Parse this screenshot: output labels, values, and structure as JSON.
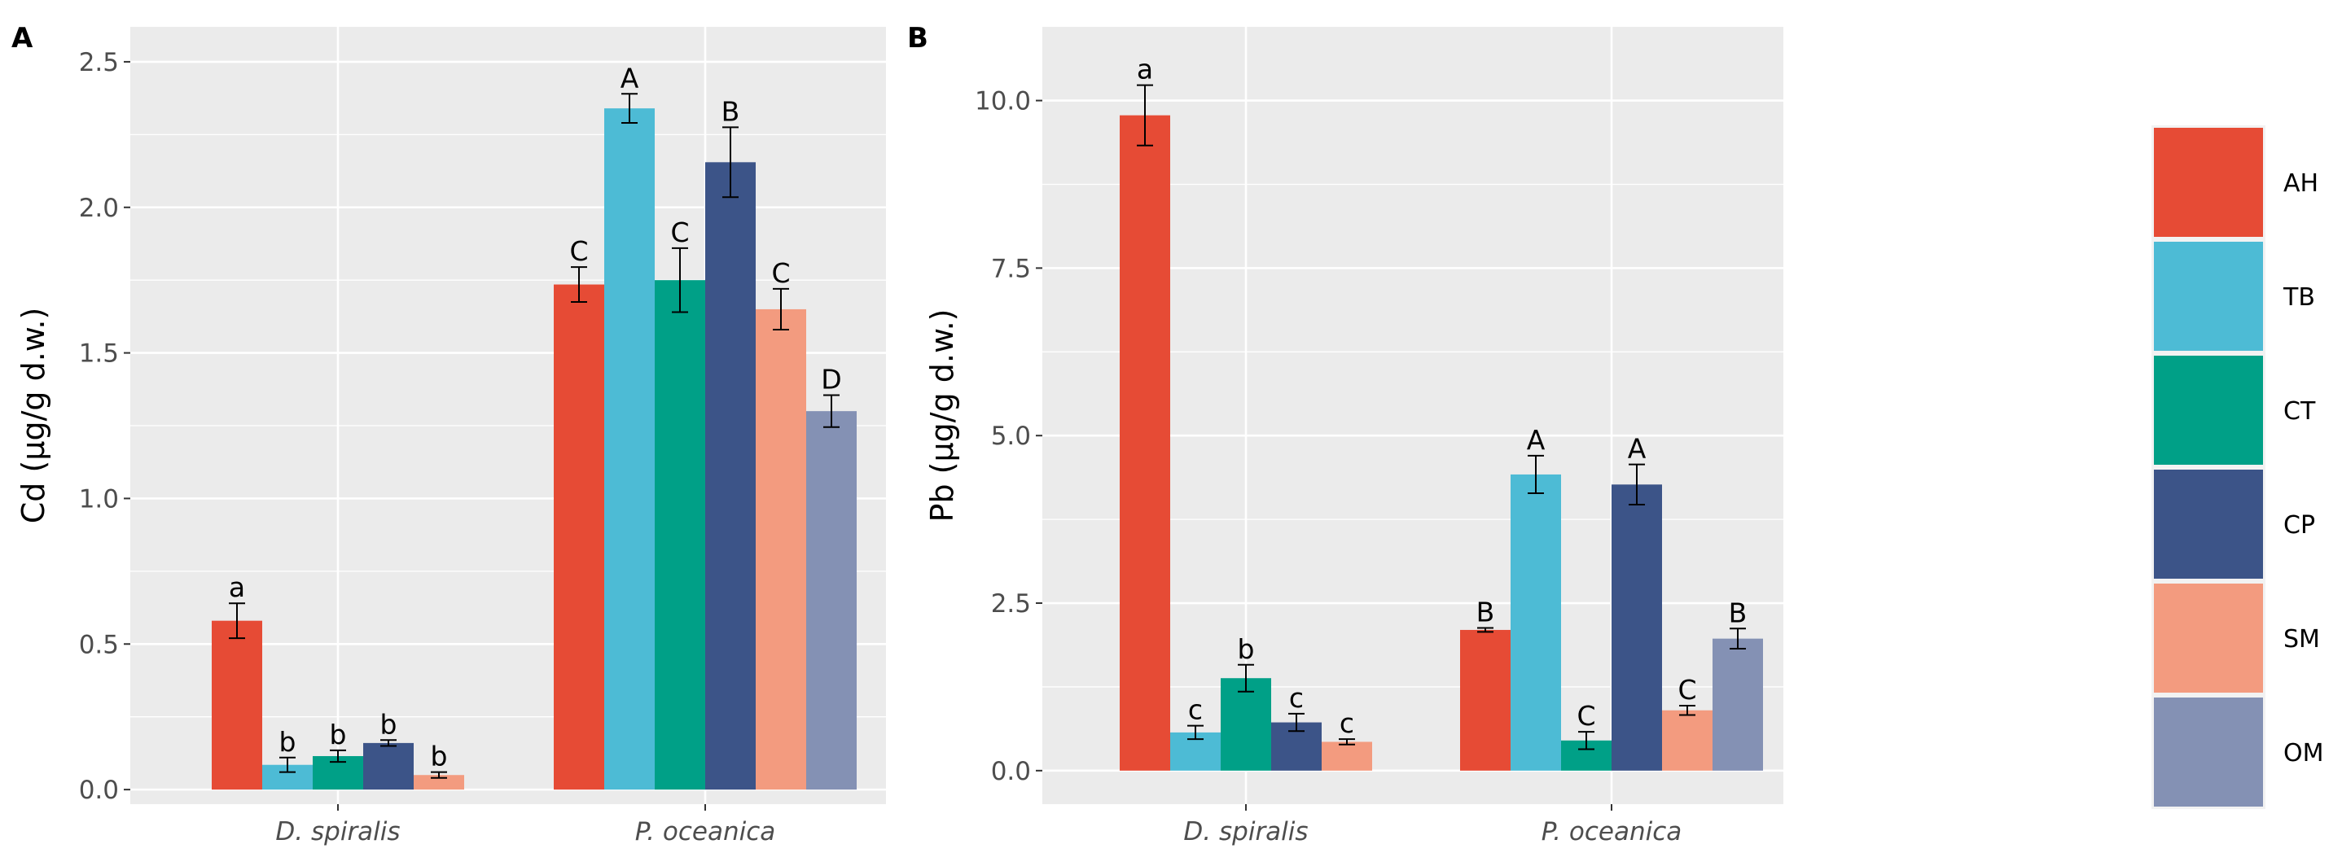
{
  "legend": [
    {
      "key": "AH",
      "color": "#E64B35"
    },
    {
      "key": "TB",
      "color": "#4DBBD5"
    },
    {
      "key": "CT",
      "color": "#00A087"
    },
    {
      "key": "CP",
      "color": "#3C5488"
    },
    {
      "key": "SM",
      "color": "#F39B7F"
    },
    {
      "key": "OM",
      "color": "#8491B4"
    }
  ],
  "chart_data": [
    {
      "type": "bar",
      "panel": "A",
      "ylabel": "Cd (µg/g d.w.)",
      "categories": [
        "D. spiralis",
        "P. oceanica"
      ],
      "yticks": [
        "0.0",
        "0.5",
        "1.0",
        "1.5",
        "2.0",
        "2.5"
      ],
      "ylim": [
        -0.05,
        2.62
      ],
      "series": [
        {
          "name": "AH",
          "values": [
            0.58,
            1.735
          ],
          "errors": [
            0.06,
            0.06
          ],
          "labels": [
            "a",
            "C"
          ]
        },
        {
          "name": "TB",
          "values": [
            0.085,
            2.34
          ],
          "errors": [
            0.025,
            0.05
          ],
          "labels": [
            "b",
            "A"
          ]
        },
        {
          "name": "CT",
          "values": [
            0.115,
            1.75
          ],
          "errors": [
            0.02,
            0.11
          ],
          "labels": [
            "b",
            "C"
          ]
        },
        {
          "name": "CP",
          "values": [
            0.16,
            2.155
          ],
          "errors": [
            0.01,
            0.12
          ],
          "labels": [
            "b",
            "B"
          ]
        },
        {
          "name": "SM",
          "values": [
            0.05,
            1.65
          ],
          "errors": [
            0.01,
            0.07
          ],
          "labels": [
            "b",
            "C"
          ]
        },
        {
          "name": "OM",
          "values": [
            null,
            1.3
          ],
          "errors": [
            null,
            0.055
          ],
          "labels": [
            "",
            "D"
          ]
        }
      ]
    },
    {
      "type": "bar",
      "panel": "B",
      "ylabel": "Pb (µg/g d.w.)",
      "categories": [
        "D. spiralis",
        "P. oceanica"
      ],
      "yticks": [
        "0.0",
        "2.5",
        "5.0",
        "7.5",
        "10.0"
      ],
      "ylim": [
        -0.5,
        11.1
      ],
      "series": [
        {
          "name": "AH",
          "values": [
            9.78,
            2.1
          ],
          "errors": [
            0.45,
            0.03
          ],
          "labels": [
            "a",
            "B"
          ]
        },
        {
          "name": "TB",
          "values": [
            0.57,
            4.42
          ],
          "errors": [
            0.1,
            0.28
          ],
          "labels": [
            "c",
            "A"
          ]
        },
        {
          "name": "CT",
          "values": [
            1.38,
            0.45
          ],
          "errors": [
            0.2,
            0.13
          ],
          "labels": [
            "b",
            "C"
          ]
        },
        {
          "name": "CP",
          "values": [
            0.72,
            4.27
          ],
          "errors": [
            0.13,
            0.3
          ],
          "labels": [
            "c",
            "A"
          ]
        },
        {
          "name": "SM",
          "values": [
            0.43,
            0.9
          ],
          "errors": [
            0.04,
            0.07
          ],
          "labels": [
            "c",
            "C"
          ]
        },
        {
          "name": "OM",
          "values": [
            null,
            1.97
          ],
          "errors": [
            null,
            0.15
          ],
          "labels": [
            "",
            "B"
          ]
        }
      ]
    }
  ]
}
